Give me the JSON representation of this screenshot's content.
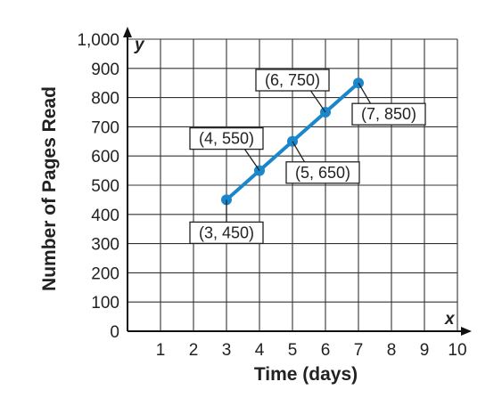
{
  "chart_data": {
    "type": "line",
    "xlabel": "Time (days)",
    "ylabel": "Number of Pages Read",
    "x_axis_var": "x",
    "y_axis_var": "y",
    "xlim": [
      0,
      10
    ],
    "ylim": [
      0,
      1000
    ],
    "x_ticks": [
      "1",
      "2",
      "3",
      "4",
      "5",
      "6",
      "7",
      "8",
      "9",
      "10"
    ],
    "y_ticks": [
      "0",
      "100",
      "200",
      "300",
      "400",
      "500",
      "600",
      "700",
      "800",
      "900",
      "1,000"
    ],
    "grid": true,
    "series": [
      {
        "color": "#1a86cc",
        "points": [
          {
            "x": 3,
            "y": 450,
            "label": "(3, 450)",
            "label_side": "below"
          },
          {
            "x": 4,
            "y": 550,
            "label": "(4, 550)",
            "label_side": "upper-left"
          },
          {
            "x": 5,
            "y": 650,
            "label": "(5, 650)",
            "label_side": "below-right"
          },
          {
            "x": 6,
            "y": 750,
            "label": "(6, 750)",
            "label_side": "upper-left"
          },
          {
            "x": 7,
            "y": 850,
            "label": "(7, 850)",
            "label_side": "below-right"
          }
        ]
      }
    ]
  }
}
